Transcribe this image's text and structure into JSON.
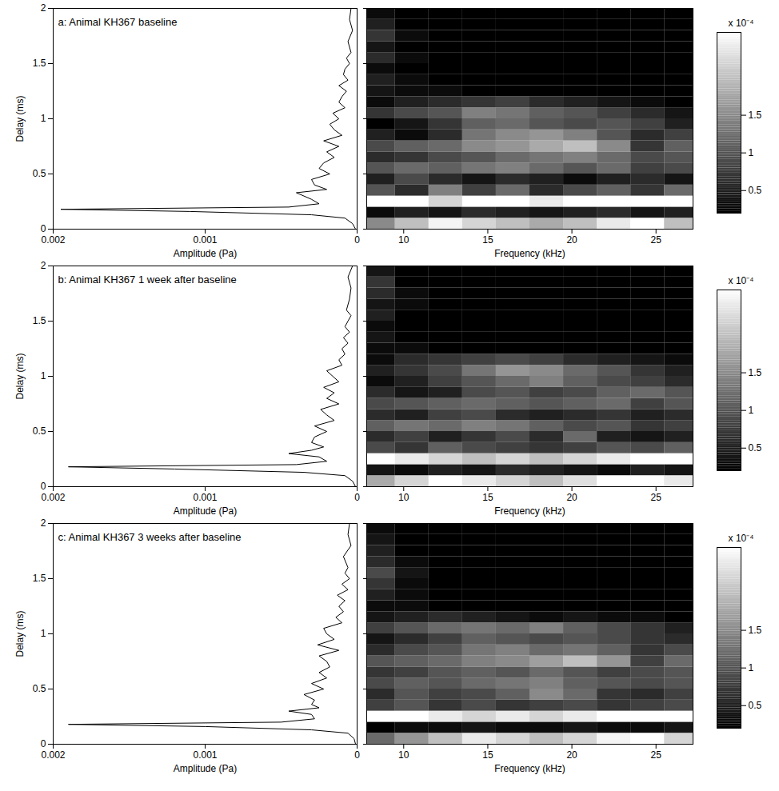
{
  "chart_data": [
    {
      "type": "line",
      "title": "a: Animal KH367 baseline",
      "x_label": "Amplitude (Pa)",
      "y_label": "Delay (ms)",
      "xlim": [
        0.002,
        0
      ],
      "xticks": [
        0.002,
        0.001,
        0
      ],
      "ylim": [
        0,
        2
      ],
      "yticks": [
        0,
        0.5,
        1,
        1.5,
        2
      ],
      "color": "#000000",
      "y": [
        0,
        0.05,
        0.1,
        0.13,
        0.16,
        0.18,
        0.2,
        0.23,
        0.27,
        0.3,
        0.33,
        0.36,
        0.4,
        0.45,
        0.5,
        0.55,
        0.6,
        0.65,
        0.7,
        0.75,
        0.8,
        0.85,
        0.9,
        0.95,
        1,
        1.05,
        1.1,
        1.15,
        1.2,
        1.25,
        1.3,
        1.35,
        1.4,
        1.45,
        1.5,
        1.55,
        1.6,
        1.7,
        1.8,
        1.9,
        2
      ],
      "values": [
        1e-05,
        3e-05,
        8e-05,
        0.0003,
        0.0011,
        0.00195,
        0.00045,
        0.00025,
        0.0003,
        0.00035,
        0.0004,
        0.0002,
        0.00028,
        0.0003,
        0.00018,
        0.00025,
        0.00022,
        0.00015,
        0.0002,
        0.00012,
        0.00022,
        0.0001,
        0.00015,
        0.00018,
        0.00012,
        0.00016,
        8e-05,
        0.00012,
        0.0001,
        7e-05,
        0.00012,
        6e-05,
        9e-05,
        8e-05,
        5e-05,
        7e-05,
        4e-05,
        6e-05,
        3e-05,
        5e-05,
        4e-05
      ]
    },
    {
      "type": "heatmap",
      "x_label": "Frequency (kHz)",
      "xlim": [
        7.8,
        27.2
      ],
      "xticks": [
        10,
        15,
        20,
        25
      ],
      "ylim": [
        0,
        2
      ],
      "yticks": [
        0,
        0.5,
        1,
        1.5,
        2
      ],
      "tick_labels": "x",
      "x": [
        8.5,
        10.5,
        12.5,
        14.5,
        16.5,
        18.5,
        20.5,
        22.5,
        24.5,
        26.5
      ],
      "y": [
        0.05,
        0.15,
        0.25,
        0.35,
        0.45,
        0.55,
        0.65,
        0.75,
        0.85,
        0.95,
        1.05,
        1.15,
        1.25,
        1.35,
        1.45,
        1.55,
        1.65,
        1.75,
        1.85,
        1.95
      ],
      "values": [
        [
          1.5,
          2.0,
          2.5,
          2.2,
          2.0,
          1.8,
          2.0,
          2.4,
          2.6,
          2.0
        ],
        [
          0.3,
          0.5,
          0.4,
          0.6,
          0.5,
          0.4,
          0.5,
          0.6,
          0.4,
          0.5
        ],
        [
          2.6,
          2.6,
          2.2,
          2.6,
          2.6,
          2.4,
          2.6,
          2.6,
          2.6,
          2.6
        ],
        [
          1.0,
          0.6,
          1.4,
          0.8,
          1.2,
          0.6,
          0.9,
          1.1,
          0.7,
          1.2
        ],
        [
          0.5,
          0.9,
          0.6,
          0.4,
          0.6,
          0.5,
          0.3,
          0.5,
          0.6,
          0.4
        ],
        [
          1.0,
          1.2,
          1.1,
          1.3,
          1.4,
          1.2,
          1.0,
          1.2,
          0.8,
          0.9
        ],
        [
          0.6,
          0.7,
          0.9,
          1.0,
          1.2,
          1.3,
          1.4,
          1.2,
          0.9,
          1.0
        ],
        [
          0.9,
          1.1,
          1.2,
          1.5,
          1.6,
          1.8,
          2.0,
          1.5,
          0.7,
          1.1
        ],
        [
          0.5,
          0.3,
          0.6,
          1.3,
          1.5,
          1.6,
          1.4,
          1.0,
          0.6,
          0.8
        ],
        [
          0.2,
          0.4,
          0.7,
          1.1,
          1.2,
          1.0,
          0.9,
          1.0,
          0.8,
          0.5
        ],
        [
          0.7,
          0.9,
          1.0,
          1.4,
          1.3,
          1.1,
          1.0,
          0.8,
          0.6,
          0.4
        ],
        [
          0.3,
          0.5,
          0.6,
          0.7,
          0.8,
          0.6,
          0.5,
          0.4,
          0.3,
          0.2
        ],
        [
          0.4,
          0.3,
          0.3,
          0.2,
          0.2,
          0.2,
          0.2,
          0.2,
          0.2,
          0.2
        ],
        [
          0.5,
          0.3,
          0.2,
          0.2,
          0.2,
          0.2,
          0.2,
          0.2,
          0.2,
          0.2
        ],
        [
          0.3,
          0.2,
          0.2,
          0.2,
          0.2,
          0.2,
          0.2,
          0.2,
          0.2,
          0.2
        ],
        [
          0.6,
          0.3,
          0.2,
          0.2,
          0.2,
          0.2,
          0.2,
          0.2,
          0.2,
          0.2
        ],
        [
          0.4,
          0.2,
          0.2,
          0.2,
          0.2,
          0.2,
          0.2,
          0.2,
          0.2,
          0.2
        ],
        [
          0.7,
          0.3,
          0.2,
          0.2,
          0.2,
          0.2,
          0.2,
          0.2,
          0.2,
          0.2
        ],
        [
          0.5,
          0.2,
          0.2,
          0.2,
          0.2,
          0.2,
          0.2,
          0.2,
          0.2,
          0.2
        ],
        [
          0.3,
          0.2,
          0.2,
          0.2,
          0.2,
          0.2,
          0.2,
          0.2,
          0.2,
          0.2
        ]
      ],
      "colorbar": {
        "lim": [
          0.2,
          2.6
        ],
        "ticks": [
          0.5,
          1,
          1.5
        ],
        "label": "x 10⁻⁴"
      }
    },
    {
      "type": "line",
      "title": "b: Animal KH367 1 week after baseline",
      "x_label": "Amplitude (Pa)",
      "y_label": "Delay (ms)",
      "xlim": [
        0.002,
        0
      ],
      "xticks": [
        0.002,
        0.001,
        0
      ],
      "ylim": [
        0,
        2
      ],
      "yticks": [
        0,
        0.5,
        1,
        1.5,
        2
      ],
      "color": "#000000",
      "y": [
        0,
        0.05,
        0.1,
        0.13,
        0.16,
        0.18,
        0.2,
        0.23,
        0.27,
        0.3,
        0.33,
        0.36,
        0.4,
        0.45,
        0.5,
        0.55,
        0.6,
        0.65,
        0.7,
        0.75,
        0.8,
        0.85,
        0.9,
        0.95,
        1,
        1.05,
        1.1,
        1.15,
        1.2,
        1.25,
        1.3,
        1.35,
        1.4,
        1.45,
        1.5,
        1.55,
        1.6,
        1.7,
        1.8,
        1.9,
        2
      ],
      "values": [
        1e-05,
        3e-05,
        8e-05,
        0.00035,
        0.0012,
        0.0019,
        0.0004,
        0.0002,
        0.00025,
        0.00045,
        0.0003,
        0.00022,
        0.0003,
        0.00028,
        0.0002,
        0.00028,
        0.00015,
        0.0002,
        0.00024,
        0.00012,
        0.0002,
        0.00015,
        0.00022,
        0.00012,
        0.00016,
        0.0002,
        0.0001,
        0.00012,
        8e-05,
        0.0001,
        6e-05,
        9e-05,
        5e-05,
        8e-05,
        6e-05,
        4e-05,
        7e-05,
        5e-05,
        4e-05,
        6e-05,
        3e-05
      ]
    },
    {
      "type": "heatmap",
      "x_label": "Frequency (kHz)",
      "xlim": [
        7.8,
        27.2
      ],
      "xticks": [
        10,
        15,
        20,
        25
      ],
      "ylim": [
        0,
        2
      ],
      "yticks": [
        0,
        0.5,
        1,
        1.5,
        2
      ],
      "tick_labels": "x",
      "x": [
        8.5,
        10.5,
        12.5,
        14.5,
        16.5,
        18.5,
        20.5,
        22.5,
        24.5,
        26.5
      ],
      "y": [
        0.05,
        0.15,
        0.25,
        0.35,
        0.45,
        0.55,
        0.65,
        0.75,
        0.85,
        0.95,
        1.05,
        1.15,
        1.25,
        1.35,
        1.45,
        1.55,
        1.65,
        1.75,
        1.85,
        1.95
      ],
      "values": [
        [
          1.8,
          2.2,
          2.6,
          2.4,
          2.2,
          2.0,
          2.3,
          2.6,
          2.6,
          2.4
        ],
        [
          0.4,
          0.3,
          0.5,
          0.4,
          0.6,
          0.5,
          0.4,
          0.3,
          0.5,
          0.4
        ],
        [
          2.6,
          2.4,
          2.2,
          2.0,
          2.2,
          2.0,
          2.2,
          2.4,
          2.6,
          2.6
        ],
        [
          0.9,
          0.7,
          1.1,
          0.9,
          0.8,
          0.7,
          0.8,
          1.0,
          0.9,
          1.1
        ],
        [
          0.6,
          0.8,
          0.5,
          0.7,
          0.9,
          0.6,
          1.2,
          0.5,
          0.4,
          0.5
        ],
        [
          1.1,
          1.3,
          1.2,
          1.4,
          1.3,
          1.1,
          0.9,
          1.0,
          0.7,
          0.8
        ],
        [
          0.6,
          0.5,
          0.8,
          0.9,
          0.6,
          0.5,
          0.6,
          0.7,
          0.5,
          0.6
        ],
        [
          0.9,
          1.0,
          1.1,
          1.2,
          1.1,
          1.0,
          1.1,
          1.2,
          0.8,
          1.0
        ],
        [
          0.6,
          0.4,
          0.5,
          0.9,
          1.0,
          0.8,
          0.9,
          1.1,
          1.2,
          1.0
        ],
        [
          0.3,
          0.5,
          0.8,
          1.0,
          1.2,
          1.4,
          1.1,
          0.9,
          0.8,
          0.6
        ],
        [
          0.5,
          0.7,
          0.9,
          1.3,
          1.6,
          1.5,
          1.2,
          1.0,
          0.7,
          0.5
        ],
        [
          0.3,
          0.6,
          0.7,
          0.8,
          0.9,
          0.8,
          0.6,
          0.5,
          0.4,
          0.3
        ],
        [
          0.3,
          0.3,
          0.2,
          0.2,
          0.2,
          0.2,
          0.2,
          0.2,
          0.2,
          0.2
        ],
        [
          0.4,
          0.2,
          0.2,
          0.2,
          0.2,
          0.2,
          0.2,
          0.2,
          0.2,
          0.2
        ],
        [
          0.3,
          0.2,
          0.2,
          0.2,
          0.2,
          0.2,
          0.2,
          0.2,
          0.2,
          0.2
        ],
        [
          0.5,
          0.2,
          0.2,
          0.2,
          0.2,
          0.2,
          0.2,
          0.2,
          0.2,
          0.2
        ],
        [
          0.4,
          0.3,
          0.2,
          0.2,
          0.2,
          0.2,
          0.2,
          0.2,
          0.2,
          0.2
        ],
        [
          0.6,
          0.3,
          0.2,
          0.2,
          0.2,
          0.2,
          0.2,
          0.2,
          0.2,
          0.2
        ],
        [
          0.7,
          0.2,
          0.2,
          0.2,
          0.2,
          0.2,
          0.2,
          0.2,
          0.2,
          0.2
        ],
        [
          0.4,
          0.2,
          0.2,
          0.2,
          0.2,
          0.2,
          0.2,
          0.2,
          0.2,
          0.2
        ]
      ],
      "colorbar": {
        "lim": [
          0.2,
          2.6
        ],
        "ticks": [
          0.5,
          1,
          1.5
        ],
        "label": "x 10⁻⁴"
      }
    },
    {
      "type": "line",
      "title": "c: Animal KH367 3 weeks after baseline",
      "x_label": "Amplitude (Pa)",
      "y_label": "Delay (ms)",
      "xlim": [
        0.002,
        0
      ],
      "xticks": [
        0.002,
        0.001,
        0
      ],
      "ylim": [
        0,
        2
      ],
      "yticks": [
        0,
        0.5,
        1,
        1.5,
        2
      ],
      "color": "#000000",
      "y": [
        0,
        0.05,
        0.1,
        0.13,
        0.16,
        0.18,
        0.2,
        0.23,
        0.27,
        0.3,
        0.33,
        0.36,
        0.4,
        0.45,
        0.5,
        0.55,
        0.6,
        0.65,
        0.7,
        0.75,
        0.8,
        0.85,
        0.9,
        0.95,
        1,
        1.05,
        1.1,
        1.15,
        1.2,
        1.25,
        1.3,
        1.35,
        1.4,
        1.45,
        1.5,
        1.55,
        1.6,
        1.7,
        1.8,
        1.9,
        2
      ],
      "values": [
        1e-05,
        2e-05,
        6e-05,
        0.0003,
        0.001,
        0.0019,
        0.0005,
        0.00028,
        0.0003,
        0.00045,
        0.00025,
        0.0003,
        0.00028,
        0.00035,
        0.00022,
        0.0003,
        0.0002,
        0.00025,
        0.00018,
        0.0002,
        0.00025,
        0.00012,
        0.00026,
        0.00015,
        0.0002,
        0.00022,
        0.0001,
        0.00014,
        9e-05,
        0.00012,
        8e-05,
        0.00013,
        6e-05,
        0.0001,
        5e-05,
        8e-05,
        6e-05,
        9e-05,
        4e-05,
        6e-05,
        5e-05
      ]
    },
    {
      "type": "heatmap",
      "x_label": "Frequency (kHz)",
      "xlim": [
        7.8,
        27.2
      ],
      "xticks": [
        10,
        15,
        20,
        25
      ],
      "ylim": [
        0,
        2
      ],
      "yticks": [
        0,
        0.5,
        1,
        1.5,
        2
      ],
      "tick_labels": "x",
      "x": [
        8.5,
        10.5,
        12.5,
        14.5,
        16.5,
        18.5,
        20.5,
        22.5,
        24.5,
        26.5
      ],
      "y": [
        0.05,
        0.15,
        0.25,
        0.35,
        0.45,
        0.55,
        0.65,
        0.75,
        0.85,
        0.95,
        1.05,
        1.15,
        1.25,
        1.35,
        1.45,
        1.55,
        1.65,
        1.75,
        1.85,
        1.95
      ],
      "values": [
        [
          1.2,
          1.6,
          2.0,
          2.4,
          2.2,
          2.0,
          2.2,
          2.5,
          2.6,
          2.2
        ],
        [
          0.2,
          0.3,
          0.3,
          0.4,
          0.3,
          0.3,
          0.4,
          0.3,
          0.3,
          0.4
        ],
        [
          2.6,
          2.6,
          2.4,
          2.2,
          2.4,
          2.2,
          2.4,
          2.6,
          2.6,
          2.6
        ],
        [
          0.8,
          1.0,
          0.7,
          0.9,
          0.7,
          0.8,
          0.9,
          0.7,
          0.8,
          0.9
        ],
        [
          0.6,
          1.0,
          0.8,
          0.9,
          1.1,
          1.5,
          1.2,
          0.7,
          0.6,
          0.8
        ],
        [
          0.9,
          1.1,
          1.0,
          1.2,
          1.3,
          1.4,
          1.1,
          1.0,
          0.9,
          1.0
        ],
        [
          0.7,
          0.8,
          1.0,
          1.1,
          1.0,
          1.2,
          1.0,
          0.8,
          0.9,
          1.0
        ],
        [
          1.0,
          1.1,
          1.2,
          1.4,
          1.5,
          1.7,
          2.0,
          1.6,
          0.8,
          1.2
        ],
        [
          0.6,
          0.9,
          1.0,
          1.3,
          1.4,
          1.2,
          1.3,
          1.1,
          0.7,
          0.9
        ],
        [
          0.4,
          0.6,
          0.8,
          1.1,
          1.0,
          0.9,
          1.0,
          0.9,
          0.7,
          0.6
        ],
        [
          0.8,
          1.0,
          1.2,
          1.3,
          1.2,
          1.4,
          1.1,
          0.9,
          0.7,
          0.5
        ],
        [
          0.4,
          0.5,
          0.6,
          0.5,
          0.4,
          0.3,
          0.4,
          0.3,
          0.3,
          0.2
        ],
        [
          0.3,
          0.3,
          0.2,
          0.2,
          0.2,
          0.2,
          0.2,
          0.2,
          0.2,
          0.2
        ],
        [
          0.5,
          0.3,
          0.2,
          0.2,
          0.2,
          0.2,
          0.2,
          0.2,
          0.2,
          0.2
        ],
        [
          0.7,
          0.3,
          0.2,
          0.2,
          0.2,
          0.2,
          0.2,
          0.2,
          0.2,
          0.2
        ],
        [
          0.9,
          0.4,
          0.2,
          0.2,
          0.2,
          0.2,
          0.2,
          0.2,
          0.2,
          0.2
        ],
        [
          0.6,
          0.3,
          0.2,
          0.2,
          0.2,
          0.2,
          0.2,
          0.2,
          0.2,
          0.2
        ],
        [
          0.5,
          0.2,
          0.2,
          0.2,
          0.2,
          0.2,
          0.2,
          0.2,
          0.2,
          0.2
        ],
        [
          0.4,
          0.2,
          0.2,
          0.2,
          0.2,
          0.2,
          0.2,
          0.2,
          0.2,
          0.2
        ],
        [
          0.3,
          0.2,
          0.2,
          0.2,
          0.2,
          0.2,
          0.2,
          0.2,
          0.2,
          0.2
        ]
      ],
      "colorbar": {
        "lim": [
          0.2,
          2.6
        ],
        "ticks": [
          0.5,
          1,
          1.5
        ],
        "label": "x 10⁻⁴"
      }
    }
  ]
}
